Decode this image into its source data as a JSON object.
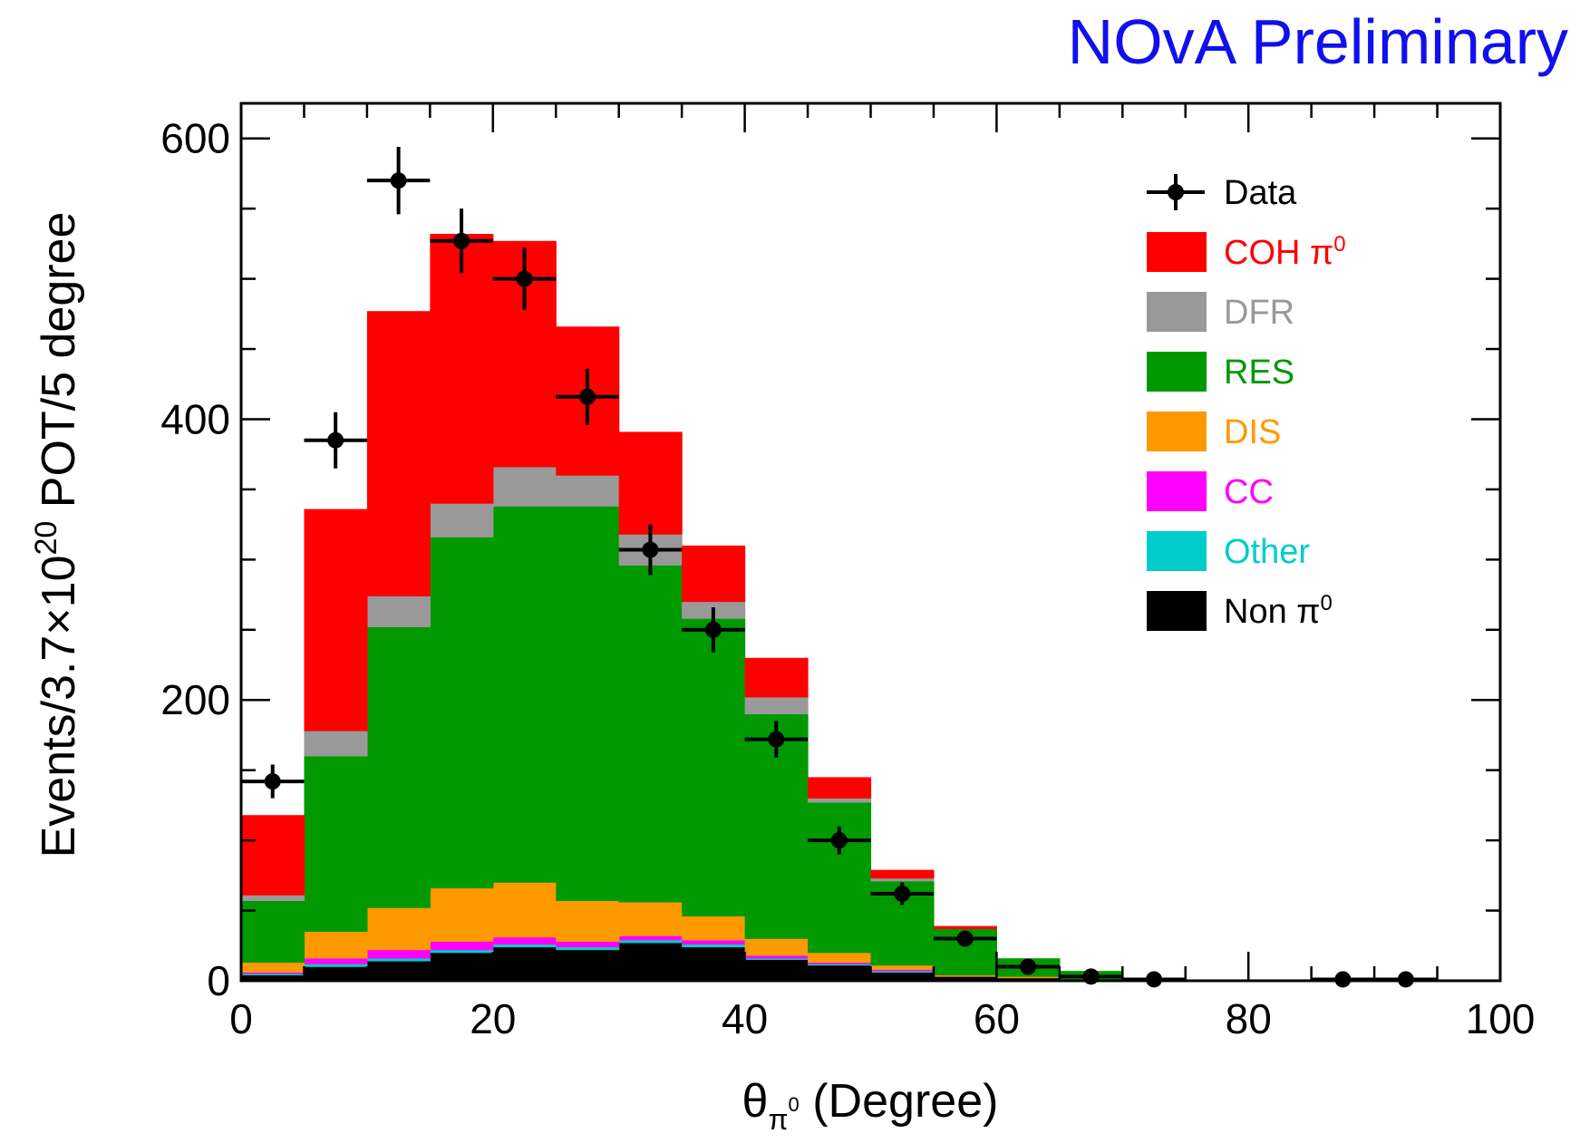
{
  "chart_data": {
    "type": "bar",
    "subtype": "stacked-histogram-with-data-points",
    "watermark": "NOvA Preliminary",
    "xlabel": {
      "symbol": "θ",
      "sub": "π",
      "sup": "0",
      "units": "(Degree)"
    },
    "ylabel": {
      "pre": "Events/3.7×10",
      "sup": "20",
      "post": " POT/5 degree"
    },
    "xlim": [
      0,
      100
    ],
    "ylim": [
      0,
      625
    ],
    "xticks": [
      "0",
      "20",
      "40",
      "60",
      "80",
      "100"
    ],
    "yticks": [
      "0",
      "200",
      "400",
      "600"
    ],
    "bin_edges": [
      0,
      5,
      10,
      15,
      20,
      25,
      30,
      35,
      40,
      45,
      50,
      55,
      60,
      65,
      70,
      75,
      80,
      85,
      90,
      95,
      100
    ],
    "legend_position": "top-right",
    "stack_order": [
      "Non π0",
      "Other",
      "CC",
      "DIS",
      "RES",
      "DFR",
      "COH π0"
    ],
    "series": [
      {
        "name": "Non π0",
        "legend": "Non π",
        "sup": "0",
        "color": "#000000",
        "values": [
          4,
          10,
          14,
          20,
          24,
          22,
          27,
          24,
          15,
          11,
          6,
          3,
          2,
          1,
          0,
          0,
          0,
          0,
          0,
          0
        ]
      },
      {
        "name": "Other",
        "legend": "Other",
        "color": "#00cccc",
        "values": [
          1,
          2,
          2,
          2,
          2,
          2,
          2,
          2,
          1,
          1,
          1,
          0,
          0,
          0,
          0,
          0,
          0,
          0,
          0,
          0
        ]
      },
      {
        "name": "CC",
        "legend": "CC",
        "color": "#ff00ff",
        "values": [
          1,
          4,
          6,
          6,
          5,
          4,
          3,
          3,
          2,
          1,
          1,
          0,
          0,
          0,
          0,
          0,
          0,
          0,
          0,
          0
        ]
      },
      {
        "name": "DIS",
        "legend": "DIS",
        "color": "#ff9900",
        "values": [
          7,
          19,
          30,
          38,
          39,
          29,
          24,
          17,
          12,
          7,
          3,
          1,
          1,
          0,
          0,
          0,
          0,
          0,
          0,
          0
        ]
      },
      {
        "name": "RES",
        "legend": "RES",
        "color": "#009900",
        "values": [
          44,
          125,
          200,
          250,
          268,
          281,
          240,
          212,
          160,
          107,
          60,
          33,
          13,
          6,
          0,
          0,
          0,
          0,
          0,
          0
        ]
      },
      {
        "name": "DFR",
        "legend": "DFR",
        "color": "#999999",
        "values": [
          4,
          18,
          22,
          24,
          28,
          22,
          22,
          12,
          12,
          3,
          2,
          0,
          0,
          0,
          0,
          0,
          0,
          0,
          0,
          0
        ]
      },
      {
        "name": "COH π0",
        "legend": "COH π",
        "sup": "0",
        "color": "#ff0000",
        "values": [
          57,
          158,
          203,
          192,
          161,
          106,
          73,
          40,
          28,
          15,
          6,
          2,
          0,
          0,
          0,
          0,
          0,
          0,
          0,
          0
        ]
      }
    ],
    "data_points": {
      "name": "Data",
      "color": "#000000",
      "x": [
        2.5,
        7.5,
        12.5,
        17.5,
        22.5,
        27.5,
        32.5,
        37.5,
        42.5,
        47.5,
        52.5,
        57.5,
        62.5,
        67.5,
        72.5,
        87.5,
        92.5
      ],
      "y": [
        142,
        385,
        570,
        527,
        500,
        416,
        307,
        250,
        172,
        100,
        62,
        30,
        10,
        3,
        1,
        1,
        1
      ],
      "yerr": [
        12,
        20,
        24,
        23,
        22,
        20,
        18,
        16,
        13,
        10,
        8,
        5,
        3,
        2,
        1,
        1,
        1
      ],
      "xerr": 2.5
    }
  }
}
